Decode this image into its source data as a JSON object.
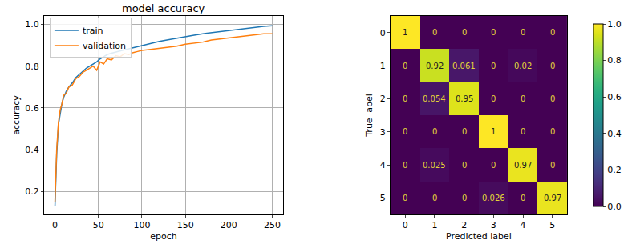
{
  "chart_data": [
    {
      "type": "line",
      "title": "model accuracy",
      "x_label": "epoch",
      "y_label": "accuracy",
      "x": [
        0,
        2,
        4,
        6,
        8,
        10,
        13,
        16,
        20,
        24,
        28,
        32,
        36,
        40,
        44,
        48,
        52,
        56,
        60,
        65,
        70,
        75,
        80,
        85,
        90,
        95,
        100,
        110,
        120,
        130,
        140,
        150,
        160,
        170,
        180,
        190,
        200,
        210,
        220,
        230,
        240,
        250
      ],
      "series": [
        {
          "name": "train",
          "color": "#1f77b4",
          "values": [
            0.13,
            0.38,
            0.52,
            0.58,
            0.62,
            0.65,
            0.68,
            0.7,
            0.72,
            0.745,
            0.76,
            0.775,
            0.79,
            0.8,
            0.81,
            0.82,
            0.835,
            0.845,
            0.855,
            0.862,
            0.868,
            0.873,
            0.878,
            0.883,
            0.888,
            0.893,
            0.9,
            0.91,
            0.918,
            0.926,
            0.934,
            0.942,
            0.948,
            0.955,
            0.96,
            0.966,
            0.972,
            0.977,
            0.982,
            0.986,
            0.99,
            0.993
          ]
        },
        {
          "name": "validation",
          "color": "#ff7f0e",
          "values": [
            0.15,
            0.4,
            0.53,
            0.59,
            0.62,
            0.66,
            0.67,
            0.7,
            0.71,
            0.74,
            0.75,
            0.77,
            0.78,
            0.79,
            0.8,
            0.78,
            0.82,
            0.81,
            0.835,
            0.83,
            0.85,
            0.845,
            0.86,
            0.855,
            0.865,
            0.87,
            0.875,
            0.88,
            0.885,
            0.89,
            0.895,
            0.905,
            0.91,
            0.915,
            0.925,
            0.93,
            0.935,
            0.94,
            0.945,
            0.95,
            0.955,
            0.955
          ]
        }
      ],
      "xlim": [
        -12.5,
        262.5
      ],
      "xticks": [
        0,
        50,
        100,
        150,
        200,
        250
      ],
      "ylim": [
        0.09,
        1.04
      ],
      "yticks": [
        0.2,
        0.4,
        0.6,
        0.8,
        {
          "value": 1,
          "label": "1.0"
        }
      ],
      "grid": true,
      "legend": "upper left"
    },
    {
      "type": "heatmap",
      "x_label": "Predicted label",
      "y_label": "True label",
      "x": [
        0,
        1,
        2,
        3,
        4,
        5
      ],
      "y": [
        0,
        1,
        2,
        3,
        4,
        5
      ],
      "xlim": [
        -0.5,
        5.5
      ],
      "ylim": [
        5.5,
        -0.5
      ],
      "xticks": [
        0,
        1,
        2,
        3,
        4,
        5
      ],
      "yticks": [
        0,
        1,
        2,
        3,
        4,
        5
      ],
      "cells": [
        [
          1,
          0,
          0,
          0,
          0,
          0
        ],
        [
          0,
          0.92,
          0.061,
          0,
          0.02,
          0
        ],
        [
          0,
          0.054,
          0.95,
          0,
          0,
          0
        ],
        [
          0,
          0,
          0,
          1,
          0,
          0
        ],
        [
          0,
          0.025,
          0,
          0,
          0.97,
          0
        ],
        [
          0,
          0,
          0,
          0.026,
          0,
          0.97
        ]
      ],
      "data_labels": true,
      "color": "viridis",
      "colorbar_range": [
        0,
        1
      ],
      "colorbar_ticks": [
        {
          "value": 0,
          "label": "0.0"
        },
        0.2,
        0.4,
        0.6,
        0.8,
        {
          "value": 1,
          "label": "1.0"
        }
      ]
    }
  ]
}
